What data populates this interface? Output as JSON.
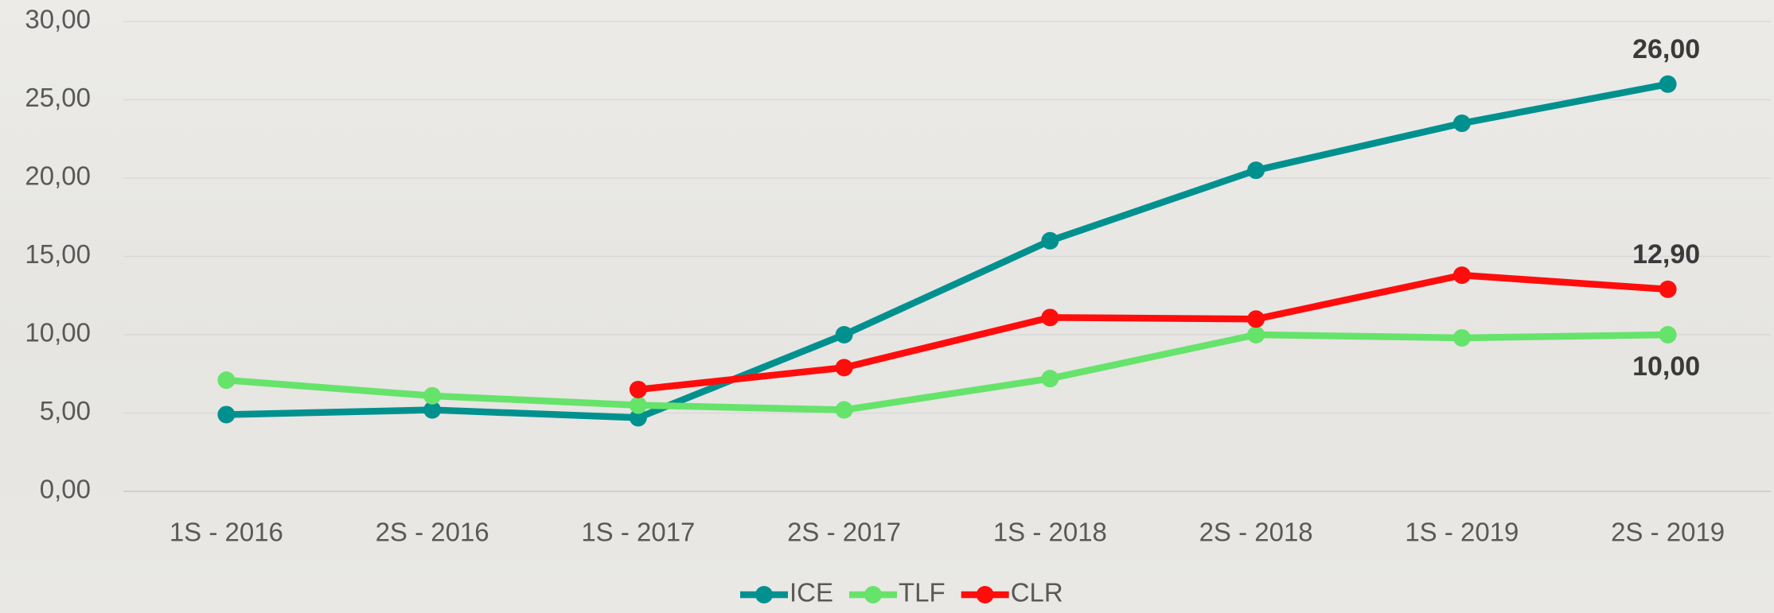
{
  "chart_data": {
    "type": "line",
    "categories": [
      "1S - 2016",
      "2S - 2016",
      "1S - 2017",
      "2S - 2017",
      "1S - 2018",
      "2S - 2018",
      "1S - 2019",
      "2S - 2019"
    ],
    "series": [
      {
        "name": "ICE",
        "color": "#00918f",
        "values": [
          4.9,
          5.2,
          4.7,
          10.0,
          16.0,
          20.5,
          23.5,
          26.0
        ],
        "value_labels": [
          null,
          null,
          null,
          null,
          null,
          null,
          null,
          "26,00"
        ]
      },
      {
        "name": "TLF",
        "color": "#66e36b",
        "values": [
          7.1,
          6.1,
          5.5,
          5.2,
          7.2,
          10.0,
          9.8,
          10.0
        ],
        "value_labels": [
          null,
          null,
          null,
          null,
          null,
          null,
          null,
          "10,00"
        ]
      },
      {
        "name": "CLR",
        "color": "#ff0d0d",
        "values": [
          null,
          null,
          6.5,
          7.9,
          11.1,
          11.0,
          13.8,
          12.9
        ],
        "value_labels": [
          null,
          null,
          null,
          null,
          null,
          null,
          null,
          "12,90"
        ]
      }
    ],
    "ylim": [
      0,
      30
    ],
    "yticks": [
      {
        "value": 0,
        "label": "0,00"
      },
      {
        "value": 5,
        "label": "5,00"
      },
      {
        "value": 10,
        "label": "10,00"
      },
      {
        "value": 15,
        "label": "15,00"
      },
      {
        "value": 20,
        "label": "20,00"
      },
      {
        "value": 25,
        "label": "25,00"
      },
      {
        "value": 30,
        "label": "30,00"
      }
    ],
    "grid": true,
    "legend": "bottom"
  }
}
